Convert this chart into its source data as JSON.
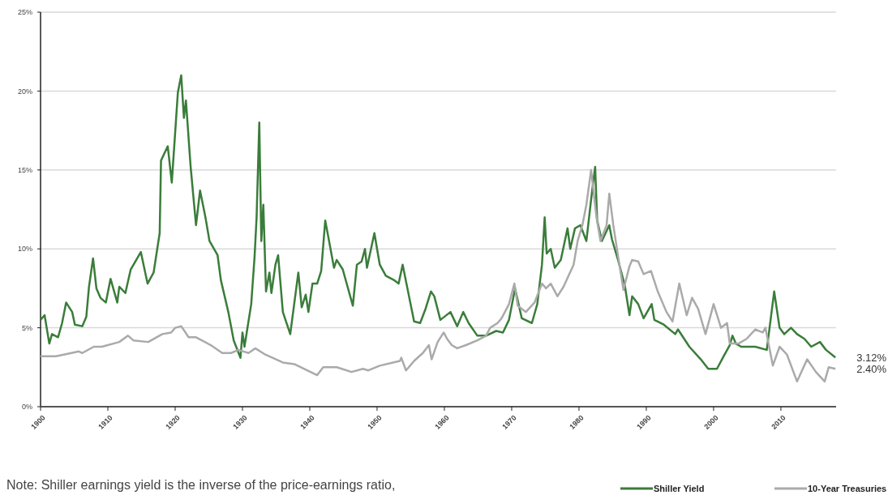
{
  "chart_data": {
    "type": "line",
    "xlim": [
      1900,
      2018.2
    ],
    "xticks": [
      1900,
      1910,
      1920,
      1930,
      1940,
      1950,
      1960,
      1970,
      1980,
      1990,
      2000,
      2010
    ],
    "ylim": [
      0,
      25
    ],
    "yticks": [
      {
        "value": 0,
        "label": "0%"
      },
      {
        "value": 5,
        "label": "5%"
      },
      {
        "value": 10,
        "label": "10%"
      },
      {
        "value": 15,
        "label": "15%"
      },
      {
        "value": 20,
        "label": "20%"
      },
      {
        "value": 25,
        "label": "25%"
      }
    ],
    "grid": "y",
    "legend": "bottom right",
    "line_style": "solid",
    "marker": "none",
    "series": [
      {
        "name": "Shiller Yield",
        "color": "#3a7d3a",
        "x": [
          1900,
          1900.6,
          1901.3,
          1901.7,
          1902.6,
          1903.2,
          1903.8,
          1904.7,
          1905.1,
          1906.2,
          1906.8,
          1907.2,
          1907.8,
          1908.3,
          1908.9,
          1909.7,
          1910.4,
          1911.4,
          1911.7,
          1912.6,
          1913.4,
          1914.9,
          1915.9,
          1916.8,
          1917.7,
          1917.9,
          1918.9,
          1919.5,
          1920.4,
          1920.9,
          1921.3,
          1921.6,
          1922.3,
          1923.1,
          1923.7,
          1924.5,
          1925.1,
          1926.3,
          1926.8,
          1927.9,
          1928.7,
          1929.7,
          1930,
          1930.3,
          1931.3,
          1931.8,
          1932.1,
          1932.5,
          1932.8,
          1933.1,
          1933.5,
          1934,
          1934.3,
          1934.9,
          1935.3,
          1936,
          1937.1,
          1938.3,
          1938.8,
          1939.4,
          1939.8,
          1940.4,
          1941.1,
          1941.7,
          1942.3,
          1943.6,
          1944,
          1944.9,
          1946.4,
          1947,
          1947.7,
          1948.2,
          1948.5,
          1949.6,
          1950.4,
          1951.3,
          1952.6,
          1953.2,
          1953.8,
          1955.5,
          1956.4,
          1957.2,
          1958,
          1958.5,
          1959.4,
          1960.9,
          1961.9,
          1962.8,
          1963.6,
          1964.9,
          1966.2,
          1967.7,
          1968.7,
          1969.6,
          1970.5,
          1971.5,
          1973,
          1973.8,
          1974.5,
          1974.9,
          1975.2,
          1975.8,
          1976.4,
          1977.3,
          1978.3,
          1978.7,
          1979.4,
          1980.2,
          1981.1,
          1981.9,
          1982.4,
          1982.7,
          1983.4,
          1984.5,
          1984.9,
          1985.8,
          1986.8,
          1987.5,
          1987.9,
          1988.8,
          1989.6,
          1990.8,
          1991.2,
          1992.6,
          1994.3,
          1994.7,
          1996.4,
          1998.1,
          1999.2,
          2000.5,
          2001.5,
          2002.4,
          2002.8,
          2003.3,
          2004.1,
          2006.2,
          2007.9,
          2009,
          2009.8,
          2010.5,
          2011.5,
          2012.4,
          2013.5,
          2014.5,
          2015.8,
          2016.7,
          2018.1
        ],
        "values": [
          5.5,
          5.8,
          4,
          4.6,
          4.4,
          5.3,
          6.6,
          6,
          5.2,
          5.1,
          5.7,
          7.6,
          9.4,
          7.5,
          6.9,
          6.6,
          8.1,
          6.6,
          7.6,
          7.2,
          8.7,
          9.8,
          7.8,
          8.5,
          11,
          15.6,
          16.5,
          14.2,
          19.9,
          21,
          18.3,
          19.4,
          15.2,
          11.5,
          13.7,
          12,
          10.5,
          9.6,
          8,
          6,
          4.2,
          3.1,
          4.7,
          3.8,
          6.5,
          9.5,
          12,
          18,
          10.5,
          12.8,
          7.3,
          8.5,
          7.2,
          9,
          9.6,
          6,
          4.6,
          8.5,
          6.3,
          7.1,
          6,
          7.8,
          7.8,
          8.6,
          11.8,
          8.8,
          9.3,
          8.7,
          6.4,
          9,
          9.2,
          10,
          8.8,
          11,
          9,
          8.3,
          8,
          7.8,
          9,
          5.4,
          5.3,
          6.2,
          7.3,
          7,
          5.5,
          6,
          5.1,
          6,
          5.3,
          4.5,
          4.5,
          4.8,
          4.7,
          5.5,
          7.5,
          5.6,
          5.3,
          6.5,
          9,
          12,
          9.7,
          10,
          8.8,
          9.3,
          11.3,
          10,
          11.3,
          11.5,
          10.5,
          13.5,
          15.2,
          11.8,
          10.5,
          11.5,
          10.6,
          9.3,
          7.7,
          5.8,
          7,
          6.5,
          5.6,
          6.5,
          5.5,
          5.2,
          4.6,
          4.9,
          3.8,
          3,
          2.4,
          2.4,
          3.2,
          3.9,
          4.5,
          4,
          3.8,
          3.8,
          3.6,
          7.3,
          5,
          4.6,
          5,
          4.6,
          4.3,
          3.8,
          4.1,
          3.6,
          3.12
        ]
      },
      {
        "name": "10-Year Treasuries",
        "color": "#aaaaaa",
        "x": [
          1900,
          1902.3,
          1905.7,
          1906.2,
          1907.9,
          1909.1,
          1911.7,
          1913,
          1913.8,
          1916,
          1918.1,
          1919.4,
          1920,
          1920.9,
          1922,
          1923.1,
          1925.3,
          1927,
          1928.3,
          1929.4,
          1930.9,
          1931.9,
          1933.4,
          1936,
          1937.7,
          1941.1,
          1942,
          1944,
          1946.2,
          1947.9,
          1948.7,
          1950.4,
          1953.4,
          1953.6,
          1954.3,
          1955.5,
          1956.8,
          1957.7,
          1958.1,
          1959,
          1959.9,
          1960.4,
          1961.1,
          1961.9,
          1963.2,
          1964.9,
          1966.2,
          1966.8,
          1967.9,
          1968.5,
          1969.6,
          1970.4,
          1970.9,
          1971.5,
          1972.1,
          1973.4,
          1974.5,
          1975.1,
          1975.8,
          1976.8,
          1977.7,
          1979.2,
          1979.8,
          1980.5,
          1981.1,
          1981.8,
          1982.6,
          1983.2,
          1984.1,
          1984.5,
          1985.1,
          1986,
          1986.6,
          1987.5,
          1987.9,
          1988.8,
          1989.6,
          1990.7,
          1991.7,
          1993,
          1993.9,
          1994.9,
          1996,
          1996.8,
          1997.7,
          1998.8,
          2000,
          2001.1,
          2002,
          2002.4,
          2003.7,
          2004.9,
          2006.2,
          2007.3,
          2007.7,
          2008.8,
          2009.8,
          2010.9,
          2012.4,
          2013.9,
          2015.2,
          2016.5,
          2017.1,
          2018.1
        ],
        "values": [
          3.2,
          3.2,
          3.5,
          3.4,
          3.8,
          3.8,
          4.1,
          4.5,
          4.2,
          4.1,
          4.6,
          4.7,
          5,
          5.1,
          4.4,
          4.4,
          3.9,
          3.4,
          3.4,
          3.6,
          3.4,
          3.7,
          3.3,
          2.8,
          2.7,
          2,
          2.5,
          2.5,
          2.2,
          2.4,
          2.3,
          2.6,
          2.9,
          3.1,
          2.3,
          2.9,
          3.4,
          3.9,
          3,
          4.1,
          4.7,
          4.3,
          3.9,
          3.7,
          3.9,
          4.2,
          4.5,
          5,
          5.3,
          5.6,
          6.5,
          7.8,
          6.4,
          6.2,
          6,
          6.6,
          7.8,
          7.5,
          7.8,
          7,
          7.6,
          9,
          10.5,
          11.5,
          12.8,
          15,
          12,
          10.5,
          11.5,
          13.5,
          11.5,
          9,
          7.4,
          8.9,
          9.3,
          9.2,
          8.4,
          8.6,
          7.3,
          6,
          5.4,
          7.8,
          5.8,
          6.9,
          6.2,
          4.6,
          6.5,
          5,
          5.3,
          4,
          4,
          4.3,
          4.9,
          4.7,
          5,
          2.6,
          3.8,
          3.3,
          1.6,
          3,
          2.2,
          1.6,
          2.5,
          2.4
        ]
      }
    ],
    "annotations": [
      {
        "text": "3.12%",
        "x": 2018.1,
        "y": 3.12
      },
      {
        "text": "2.40%",
        "x": 2018.1,
        "y": 2.4
      },
      "Note: Shiller earnings yield is the inverse of the price-earnings ratio,"
    ]
  }
}
